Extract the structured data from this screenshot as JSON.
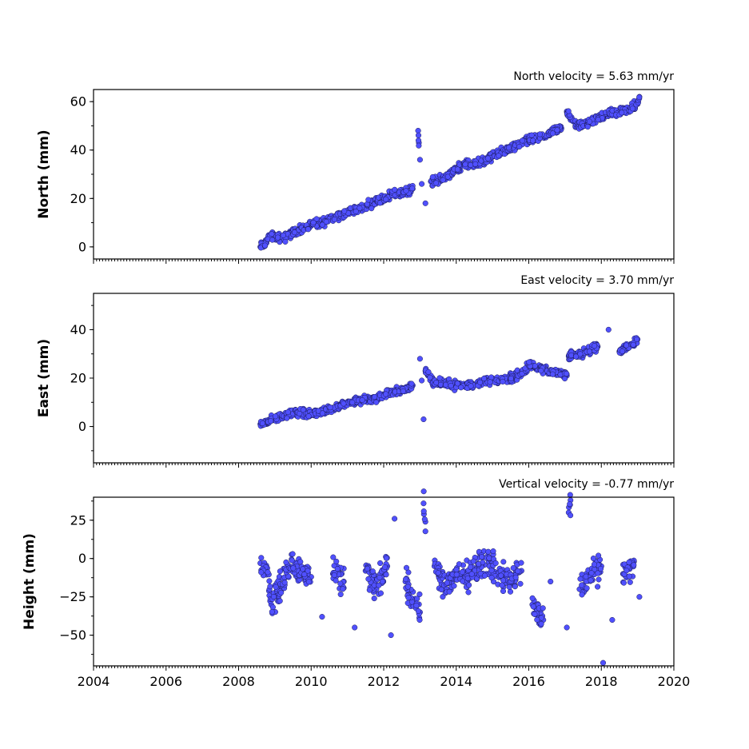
{
  "chart_data": [
    {
      "type": "scatter",
      "id": "north",
      "title": "North velocity = 5.63 mm/yr",
      "ylabel": "North (mm)",
      "xlim": [
        2004,
        2020
      ],
      "ylim": [
        -5,
        65
      ],
      "yticks": [
        0,
        20,
        40,
        60
      ],
      "color": "#5050ff",
      "series": [
        {
          "x": [
            2008.6,
            2008.7,
            2008.8,
            2008.9,
            2009.2,
            2009.5,
            2009.8,
            2010.0,
            2010.3,
            2010.6,
            2010.9,
            2011.2,
            2011.5,
            2011.8,
            2012.0,
            2012.2,
            2012.5,
            2012.8,
            2012.95,
            2012.97,
            2013.0,
            2013.05,
            2013.15,
            2013.3,
            2013.6,
            2013.9,
            2014.2,
            2014.5,
            2014.8,
            2015.1,
            2015.4,
            2015.7,
            2016.0,
            2016.3,
            2016.6,
            2016.9,
            2017.05,
            2017.3,
            2017.6,
            2017.9,
            2018.2,
            2018.5,
            2018.8,
            2019.0,
            2019.05
          ],
          "y": [
            0,
            1,
            3,
            5,
            3,
            6,
            8,
            9,
            10,
            12,
            14,
            15,
            17,
            19,
            20,
            22,
            22,
            24,
            48,
            43,
            36,
            26,
            18,
            27,
            28,
            31,
            34,
            34,
            36,
            38,
            40,
            42,
            44,
            45,
            47,
            49,
            56,
            50,
            51,
            53,
            55,
            56,
            57,
            59,
            62
          ]
        }
      ]
    },
    {
      "type": "scatter",
      "id": "east",
      "title": "East velocity = 3.70 mm/yr",
      "ylabel": "East (mm)",
      "xlim": [
        2004,
        2020
      ],
      "ylim": [
        -15,
        55
      ],
      "yticks": [
        0,
        20,
        40
      ],
      "color": "#5050ff",
      "series": [
        {
          "x": [
            2008.6,
            2008.8,
            2009.0,
            2009.3,
            2009.6,
            2009.9,
            2010.2,
            2010.5,
            2010.8,
            2011.1,
            2011.4,
            2011.7,
            2012.0,
            2012.2,
            2012.5,
            2012.8,
            2013.0,
            2013.05,
            2013.1,
            2013.15,
            2013.4,
            2013.7,
            2014.0,
            2014.3,
            2014.6,
            2014.9,
            2015.2,
            2015.5,
            2015.8,
            2016.0,
            2016.3,
            2016.6,
            2017.05,
            2017.1,
            2017.3,
            2017.6,
            2017.9,
            2018.2,
            2018.5,
            2018.8,
            2019.0
          ],
          "y": [
            1,
            2,
            3,
            5,
            6,
            5,
            6,
            7,
            9,
            10,
            11,
            11,
            13,
            14,
            15,
            17,
            28,
            19,
            3,
            23,
            18,
            18,
            17,
            17,
            18,
            19,
            19,
            20,
            22,
            25,
            24,
            23,
            21,
            29,
            30,
            31,
            33,
            40,
            31,
            34,
            36
          ]
        }
      ]
    },
    {
      "type": "scatter",
      "id": "height",
      "title": "Vertical velocity = -0.77 mm/yr",
      "ylabel": "Height (mm)",
      "xlim": [
        2004,
        2020
      ],
      "ylim": [
        -70,
        40
      ],
      "yticks": [
        -50,
        -25,
        0,
        25
      ],
      "xticks": [
        2004,
        2006,
        2008,
        2010,
        2012,
        2014,
        2016,
        2018,
        2020
      ],
      "color": "#5050ff",
      "series": [
        {
          "x": [
            2008.6,
            2008.8,
            2008.9,
            2009.1,
            2009.4,
            2009.7,
            2010.0,
            2010.3,
            2010.6,
            2010.9,
            2011.2,
            2011.5,
            2011.8,
            2012.1,
            2012.2,
            2012.3,
            2012.6,
            2012.9,
            2013.0,
            2013.1,
            2013.15,
            2013.4,
            2013.7,
            2014.0,
            2014.3,
            2014.6,
            2014.9,
            2015.2,
            2015.5,
            2015.8,
            2016.1,
            2016.4,
            2016.6,
            2017.05,
            2017.1,
            2017.15,
            2017.4,
            2017.7,
            2018.0,
            2018.05,
            2018.3,
            2018.6,
            2018.9,
            2019.05
          ],
          "y": [
            -3,
            -10,
            -30,
            -20,
            -5,
            -8,
            -12,
            -38,
            -10,
            -15,
            -45,
            -8,
            -20,
            -5,
            -50,
            26,
            -15,
            -30,
            -35,
            36,
            24,
            -5,
            -20,
            -10,
            -12,
            -5,
            -2,
            -10,
            -15,
            -8,
            -30,
            -40,
            -15,
            -45,
            30,
            38,
            -20,
            -10,
            -5,
            -68,
            -40,
            -10,
            -2,
            -25
          ]
        }
      ]
    }
  ]
}
